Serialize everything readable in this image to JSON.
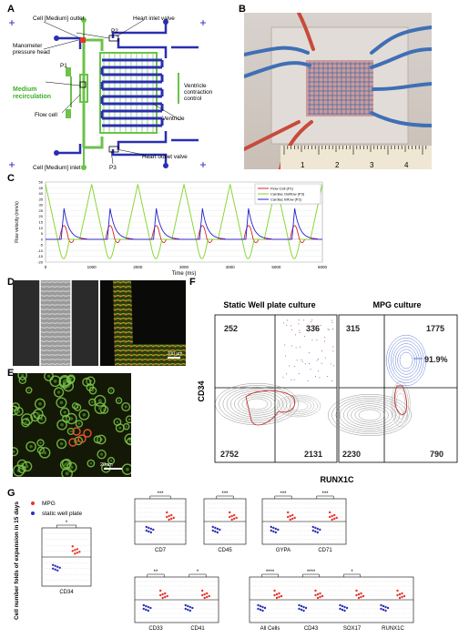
{
  "panels": {
    "A": "A",
    "B": "B",
    "C": "C",
    "D": "D",
    "E": "E",
    "F": "F",
    "G": "G"
  },
  "panel_a": {
    "cell_outlet": "Cell [Medium] outlet",
    "manometer": "Manometer",
    "pressure_head": "pressure head",
    "p1": "P1",
    "p2": "P2",
    "p3": "P3",
    "heart_inlet": "Heart inlet valve",
    "ventricle_control_1": "Ventricle",
    "ventricle_control_2": "contraction",
    "ventricle_control_3": "control",
    "medium_1": "Medium",
    "medium_2": "recirculation",
    "flow_cell": "Flow cell",
    "ventricle": "Ventricle",
    "heart_outlet": "Heart outlet valve",
    "cell_inlet": "Cell [Medium] inlet"
  },
  "panel_b": {
    "ruler_ticks": [
      "1",
      "2",
      "3",
      "4"
    ]
  },
  "panel_d": {
    "scale": "100 µm"
  },
  "panel_e": {
    "scale": "20um"
  },
  "panel_f": {
    "left_title": "Static Well plate culture",
    "right_title": "MPG culture",
    "ylabel": "CD34",
    "xlabel": "RUNX1C",
    "left_q": [
      "252",
      "336",
      "2752",
      "2131"
    ],
    "right_q": [
      "315",
      "1775",
      "2230",
      "790"
    ],
    "gate_pct": "91.9%"
  },
  "panel_g": {
    "ylabel": "Cell number folds of expansion in 15 days",
    "legend": [
      {
        "label": "MPG",
        "color": "#e8332a"
      },
      {
        "label": "static well plate",
        "color": "#2b2fb5"
      }
    ],
    "plots": [
      {
        "cats": [
          "CD34"
        ],
        "sig": [
          "*"
        ]
      },
      {
        "cats": [
          "CD7"
        ],
        "sig": [
          "***"
        ]
      },
      {
        "cats": [
          "CD45"
        ],
        "sig": [
          "***"
        ]
      },
      {
        "cats": [
          "GYPA",
          "CD71"
        ],
        "sig": [
          "***",
          "***"
        ]
      },
      {
        "cats": [
          "CD33",
          "CD41"
        ],
        "sig": [
          "**",
          "*"
        ]
      },
      {
        "cats": [
          "All Cells",
          "CD43",
          "SOX17",
          "RUNX1C"
        ],
        "sig": [
          "****",
          "****",
          "*",
          ""
        ]
      }
    ]
  },
  "chart_data": {
    "type": "line",
    "xlabel": "Time (ms)",
    "ylabel": "Flow velocity (mm/s)",
    "xlim": [
      0,
      6000
    ],
    "ylim": [
      -20,
      50
    ],
    "x_ticks": [
      0,
      1000,
      2000,
      3000,
      4000,
      5000,
      6000
    ],
    "y_ticks": [
      -20,
      -15,
      -10,
      -5,
      0,
      5,
      10,
      15,
      20,
      25,
      30,
      35,
      40,
      45,
      50
    ],
    "period_ms": 1000,
    "series": [
      {
        "name": "Flow Cell (P1)",
        "color": "#d62728",
        "peaks": [
          300,
          1300,
          2300,
          3300,
          4300,
          5300
        ],
        "peak_value": 12,
        "trough_value": -3
      },
      {
        "name": "Cardiac Outflow (P3)",
        "color": "#7fd321",
        "peaks": [
          0,
          1000,
          2000,
          3000,
          4000,
          5000,
          6000
        ],
        "peak_value": 48,
        "trough_value": -17
      },
      {
        "name": "Cardiac Inflow (P2)",
        "color": "#2020d0",
        "peaks": [
          400,
          1400,
          2400,
          3400,
          4400,
          5400
        ],
        "peak_value": 27,
        "trough_value": 0
      }
    ]
  }
}
